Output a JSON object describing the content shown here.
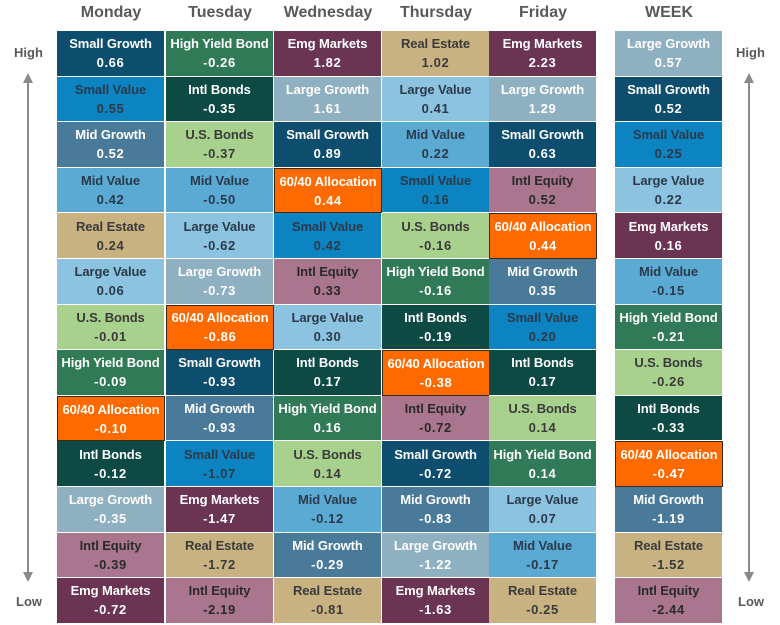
{
  "chart_data": {
    "type": "table",
    "title": "Asset class returns ranked High to Low by day and week",
    "columns": [
      "Monday",
      "Tuesday",
      "Wednesday",
      "Thursday",
      "Friday",
      "WEEK"
    ],
    "axis": {
      "top": "High",
      "bottom": "Low"
    },
    "colors": {
      "Small Growth": {
        "bg": "#0d4d6e",
        "fg": "#ffffff"
      },
      "Small Value": {
        "bg": "#0c84c1",
        "fg": "#2a3a4a"
      },
      "Mid Growth": {
        "bg": "#4a7a9a",
        "fg": "#ffffff"
      },
      "Mid Value": {
        "bg": "#5aaad4",
        "fg": "#2a3a4a"
      },
      "Large Growth": {
        "bg": "#8fb0c0",
        "fg": "#ffffff"
      },
      "Large Value": {
        "bg": "#8cc3e0",
        "fg": "#2a3a4a"
      },
      "Real Estate": {
        "bg": "#c9b282",
        "fg": "#3a3a3a"
      },
      "U.S. Bonds": {
        "bg": "#a9d18e",
        "fg": "#3a3a3a"
      },
      "High Yield Bond": {
        "bg": "#317a57",
        "fg": "#ffffff"
      },
      "Intl Bonds": {
        "bg": "#0e4a44",
        "fg": "#ffffff"
      },
      "Emg Markets": {
        "bg": "#6b3452",
        "fg": "#ffffff"
      },
      "Intl Equity": {
        "bg": "#a9768e",
        "fg": "#2a2a2a"
      },
      "60/40 Allocation": {
        "bg": "#ff6a00",
        "fg": "#ffffff"
      }
    },
    "series": [
      {
        "name": "Monday",
        "values": [
          {
            "asset": "Small Growth",
            "value": "0.66"
          },
          {
            "asset": "Small Value",
            "value": "0.55"
          },
          {
            "asset": "Mid Growth",
            "value": "0.52"
          },
          {
            "asset": "Mid Value",
            "value": "0.42"
          },
          {
            "asset": "Real Estate",
            "value": "0.24"
          },
          {
            "asset": "Large Value",
            "value": "0.06"
          },
          {
            "asset": "U.S. Bonds",
            "value": "-0.01"
          },
          {
            "asset": "High Yield Bond",
            "value": "-0.09"
          },
          {
            "asset": "60/40 Allocation",
            "value": "-0.10"
          },
          {
            "asset": "Intl Bonds",
            "value": "-0.12"
          },
          {
            "asset": "Large Growth",
            "value": "-0.35"
          },
          {
            "asset": "Intl Equity",
            "value": "-0.39"
          },
          {
            "asset": "Emg Markets",
            "value": "-0.72"
          }
        ]
      },
      {
        "name": "Tuesday",
        "values": [
          {
            "asset": "High Yield Bond",
            "value": "-0.26"
          },
          {
            "asset": "Intl Bonds",
            "value": "-0.35"
          },
          {
            "asset": "U.S. Bonds",
            "value": "-0.37"
          },
          {
            "asset": "Mid Value",
            "value": "-0.50"
          },
          {
            "asset": "Large Value",
            "value": "-0.62"
          },
          {
            "asset": "Large Growth",
            "value": "-0.73"
          },
          {
            "asset": "60/40 Allocation",
            "value": "-0.86"
          },
          {
            "asset": "Small Growth",
            "value": "-0.93"
          },
          {
            "asset": "Mid Growth",
            "value": "-0.93"
          },
          {
            "asset": "Small Value",
            "value": "-1.07"
          },
          {
            "asset": "Emg Markets",
            "value": "-1.47"
          },
          {
            "asset": "Real Estate",
            "value": "-1.72"
          },
          {
            "asset": "Intl Equity",
            "value": "-2.19"
          }
        ]
      },
      {
        "name": "Wednesday",
        "values": [
          {
            "asset": "Emg Markets",
            "value": "1.82"
          },
          {
            "asset": "Large Growth",
            "value": "1.61"
          },
          {
            "asset": "Small Growth",
            "value": "0.89"
          },
          {
            "asset": "60/40 Allocation",
            "value": "0.44"
          },
          {
            "asset": "Small Value",
            "value": "0.42"
          },
          {
            "asset": "Intl Equity",
            "value": "0.33"
          },
          {
            "asset": "Large Value",
            "value": "0.30"
          },
          {
            "asset": "Intl Bonds",
            "value": "0.17"
          },
          {
            "asset": "High Yield Bond",
            "value": "0.16"
          },
          {
            "asset": "U.S. Bonds",
            "value": "0.14"
          },
          {
            "asset": "Mid Value",
            "value": "-0.12"
          },
          {
            "asset": "Mid Growth",
            "value": "-0.29"
          },
          {
            "asset": "Real Estate",
            "value": "-0.81"
          }
        ]
      },
      {
        "name": "Thursday",
        "values": [
          {
            "asset": "Real Estate",
            "value": "1.02"
          },
          {
            "asset": "Large Value",
            "value": "0.41"
          },
          {
            "asset": "Mid Value",
            "value": "0.22"
          },
          {
            "asset": "Small Value",
            "value": "0.16"
          },
          {
            "asset": "U.S. Bonds",
            "value": "-0.16"
          },
          {
            "asset": "High Yield Bond",
            "value": "-0.16"
          },
          {
            "asset": "Intl Bonds",
            "value": "-0.19"
          },
          {
            "asset": "60/40 Allocation",
            "value": "-0.38"
          },
          {
            "asset": "Intl Equity",
            "value": "-0.72"
          },
          {
            "asset": "Small Growth",
            "value": "-0.72"
          },
          {
            "asset": "Mid Growth",
            "value": "-0.83"
          },
          {
            "asset": "Large Growth",
            "value": "-1.22"
          },
          {
            "asset": "Emg Markets",
            "value": "-1.63"
          }
        ]
      },
      {
        "name": "Friday",
        "values": [
          {
            "asset": "Emg Markets",
            "value": "2.23"
          },
          {
            "asset": "Large Growth",
            "value": "1.29"
          },
          {
            "asset": "Small Growth",
            "value": "0.63"
          },
          {
            "asset": "Intl Equity",
            "value": "0.52"
          },
          {
            "asset": "60/40 Allocation",
            "value": "0.44"
          },
          {
            "asset": "Mid Growth",
            "value": "0.35"
          },
          {
            "asset": "Small Value",
            "value": "0.20"
          },
          {
            "asset": "Intl Bonds",
            "value": "0.17"
          },
          {
            "asset": "U.S. Bonds",
            "value": "0.14"
          },
          {
            "asset": "High Yield Bond",
            "value": "0.14"
          },
          {
            "asset": "Large Value",
            "value": "0.07"
          },
          {
            "asset": "Mid Value",
            "value": "-0.17"
          },
          {
            "asset": "Real Estate",
            "value": "-0.25"
          }
        ]
      },
      {
        "name": "WEEK",
        "values": [
          {
            "asset": "Large Growth",
            "value": "0.57"
          },
          {
            "asset": "Small Growth",
            "value": "0.52"
          },
          {
            "asset": "Small Value",
            "value": "0.25"
          },
          {
            "asset": "Large Value",
            "value": "0.22"
          },
          {
            "asset": "Emg Markets",
            "value": "0.16"
          },
          {
            "asset": "Mid Value",
            "value": "-0.15"
          },
          {
            "asset": "High Yield Bond",
            "value": "-0.21"
          },
          {
            "asset": "U.S. Bonds",
            "value": "-0.26"
          },
          {
            "asset": "Intl Bonds",
            "value": "-0.33"
          },
          {
            "asset": "60/40 Allocation",
            "value": "-0.47"
          },
          {
            "asset": "Mid Growth",
            "value": "-1.19"
          },
          {
            "asset": "Real Estate",
            "value": "-1.52"
          },
          {
            "asset": "Intl Equity",
            "value": "-2.44"
          }
        ]
      }
    ]
  },
  "labels": {
    "left_high": "High",
    "left_low": "Low",
    "right_high": "High",
    "right_low": "Low"
  }
}
